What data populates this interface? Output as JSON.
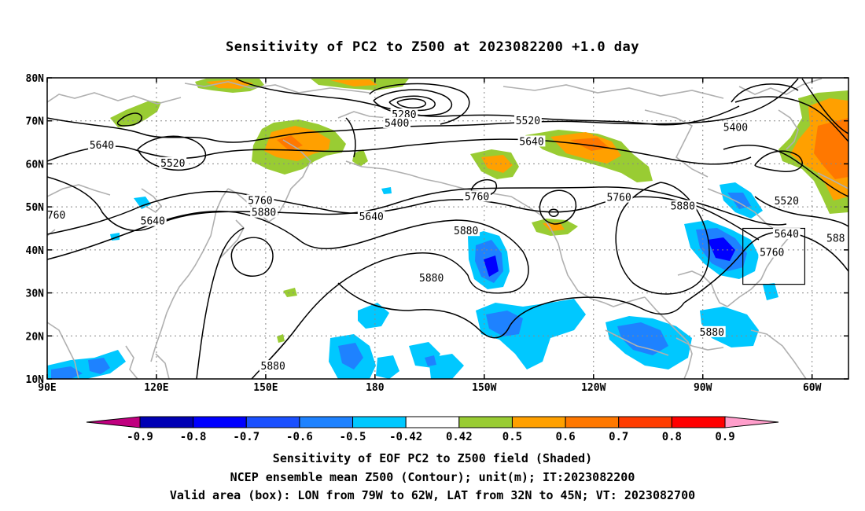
{
  "title": "Sensitivity of PC2 to Z500 at 2023082200 +1.0 day",
  "map": {
    "lon_labels": [
      "90E",
      "120E",
      "150E",
      "180",
      "150W",
      "120W",
      "90W",
      "60W"
    ],
    "lat_labels": [
      "80N",
      "70N",
      "60N",
      "50N",
      "40N",
      "30N",
      "20N",
      "10N"
    ],
    "valid_box": {
      "lon_west": -79,
      "lon_east": -62,
      "lat_south": 32,
      "lat_north": 45
    },
    "contour_labels": [
      {
        "text": "5280",
        "lon": -172,
        "lat": 71.6
      },
      {
        "text": "5400",
        "lon": -174,
        "lat": 69.6
      },
      {
        "text": "5400",
        "lon": -81,
        "lat": 68.6
      },
      {
        "text": "5520",
        "lon": -138,
        "lat": 70.1
      },
      {
        "text": "5520",
        "lon": 124.5,
        "lat": 60.3
      },
      {
        "text": "5520",
        "lon": -67,
        "lat": 51.5
      },
      {
        "text": "5640",
        "lon": 105,
        "lat": 64.5
      },
      {
        "text": "5640",
        "lon": -137,
        "lat": 65.3
      },
      {
        "text": "5640",
        "lon": 179,
        "lat": 47.8
      },
      {
        "text": "5640",
        "lon": 119,
        "lat": 46.8
      },
      {
        "text": "5640",
        "lon": -67,
        "lat": 43.8
      },
      {
        "text": "5760",
        "lon": 148.5,
        "lat": 51.6
      },
      {
        "text": "5760",
        "lon": -152,
        "lat": 52.5
      },
      {
        "text": "5760",
        "lon": -113,
        "lat": 52.3
      },
      {
        "text": "5760",
        "lon": -71,
        "lat": 39.5
      },
      {
        "text": "760",
        "lon": 92.5,
        "lat": 48.2
      },
      {
        "text": "5880",
        "lon": 149.5,
        "lat": 48.8
      },
      {
        "text": "5880",
        "lon": -155,
        "lat": 44.5
      },
      {
        "text": "5880",
        "lon": -95.5,
        "lat": 50.3
      },
      {
        "text": "5880",
        "lon": -164.5,
        "lat": 33.6
      },
      {
        "text": "5880",
        "lon": -87.5,
        "lat": 21.0
      },
      {
        "text": "5880",
        "lon": 152,
        "lat": 13.1
      },
      {
        "text": "588",
        "lon": -53.5,
        "lat": 42.8
      }
    ]
  },
  "colorbar": {
    "levels": [
      "-0.9",
      "-0.8",
      "-0.7",
      "-0.6",
      "-0.5",
      "-0.42",
      "0.42",
      "0.5",
      "0.6",
      "0.7",
      "0.8",
      "0.9"
    ],
    "colors": [
      "#c0007f",
      "#0000b4",
      "#0000ff",
      "#1a50ff",
      "#1e82ff",
      "#00c8ff",
      "#ffffff",
      "#99cc33",
      "#ffa000",
      "#ff7800",
      "#ff3c00",
      "#ff0000",
      "#ff9ecb"
    ]
  },
  "captions": {
    "line1": "Sensitivity of EOF PC2 to Z500 field (Shaded)",
    "line2": "NCEP ensemble mean Z500 (Contour); unit(m); IT:2023082200",
    "line3": "Valid area (box): LON from 79W to 62W, LAT from 32N to 45N; VT: 2023082700"
  }
}
